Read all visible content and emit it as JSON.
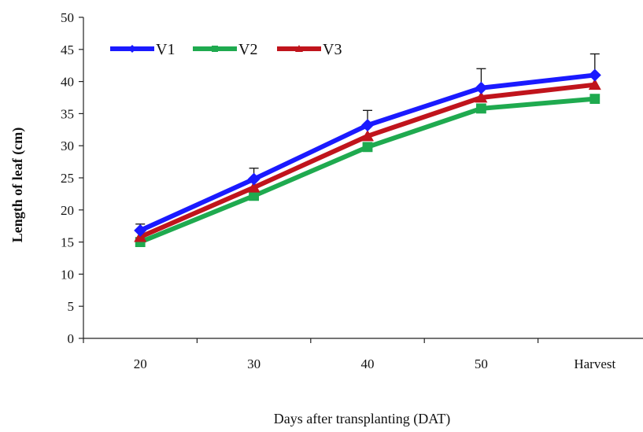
{
  "chart_data": {
    "type": "line",
    "categories": [
      "20",
      "30",
      "40",
      "50",
      "Harvest"
    ],
    "xlabel": "Days after  transplanting (DAT)",
    "ylabel": "Length of  leaf (cm)",
    "ylim": [
      0,
      50
    ],
    "yticks": [
      0,
      5,
      10,
      15,
      20,
      25,
      30,
      35,
      40,
      45,
      50
    ],
    "grid": false,
    "legend": "top-left",
    "series": [
      {
        "name": "V1",
        "color": "#1a1aff",
        "marker": "diamond",
        "values": [
          16.8,
          24.8,
          33.2,
          39.0,
          41.0
        ],
        "error": [
          1.0,
          1.7,
          2.3,
          3.0,
          3.3
        ]
      },
      {
        "name": "V2",
        "color": "#1faa4f",
        "marker": "square",
        "values": [
          15.0,
          22.2,
          29.8,
          35.8,
          37.3
        ],
        "error": [
          0,
          0,
          0,
          0,
          0
        ]
      },
      {
        "name": "V3",
        "color": "#c0141c",
        "marker": "triangle",
        "values": [
          15.8,
          23.5,
          31.5,
          37.5,
          39.5
        ],
        "error": [
          0,
          0,
          0,
          0,
          0
        ]
      }
    ]
  }
}
